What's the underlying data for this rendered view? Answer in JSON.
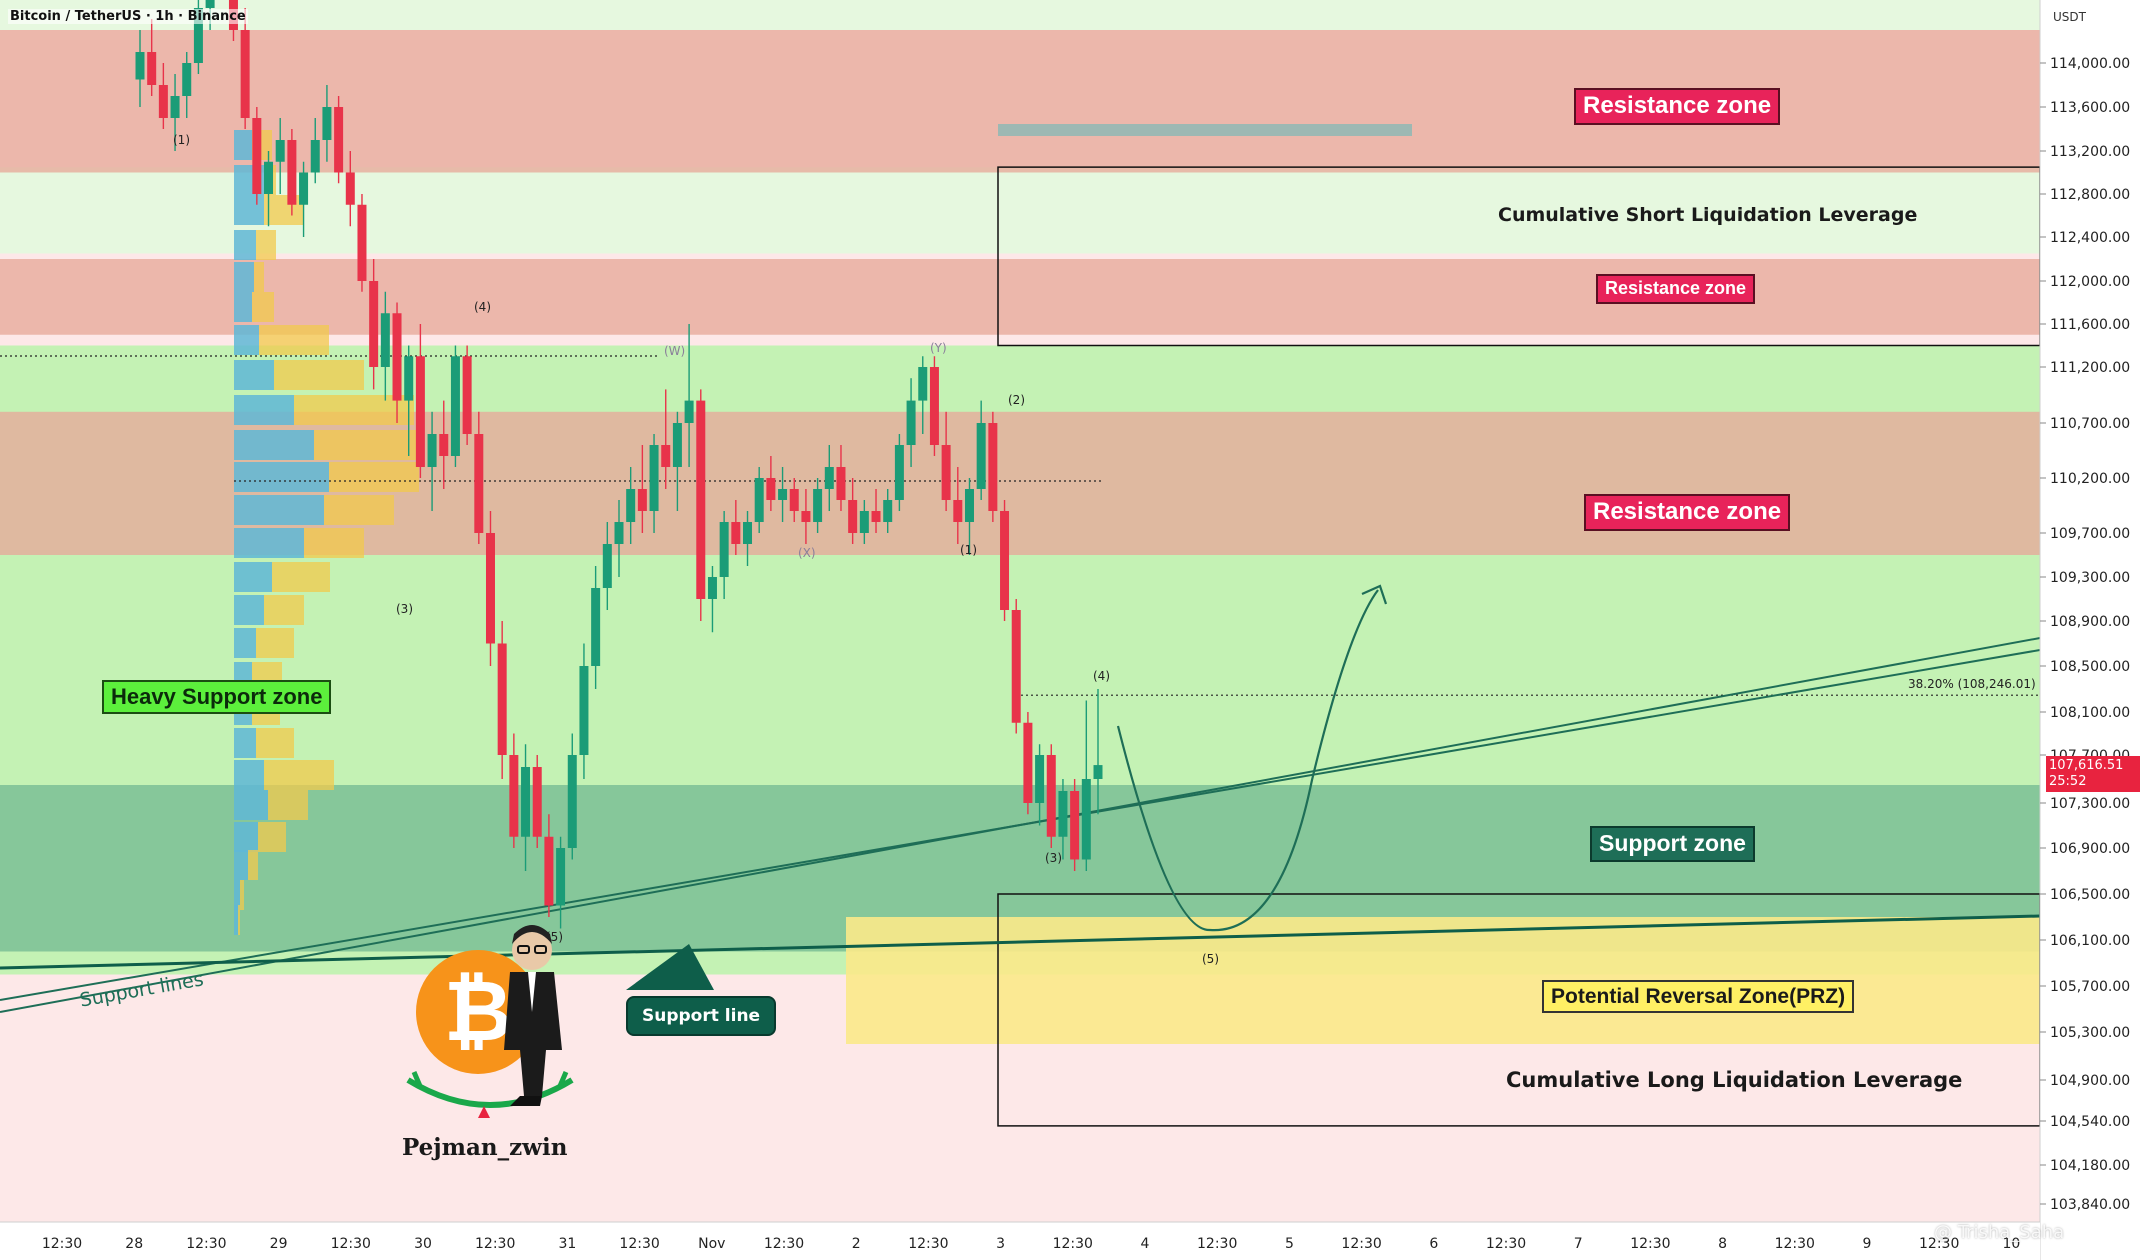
{
  "header": {
    "symbol": "Bitcoin / TetherUS · 1h · Binance",
    "axis_currency": "USDT"
  },
  "chart_data": {
    "type": "candlestick",
    "ylim": [
      103600,
      115000
    ],
    "y_ticks": [
      "114,000.00",
      "113,600.00",
      "113,200.00",
      "112,800.00",
      "112,400.00",
      "112,000.00",
      "111,600.00",
      "111,200.00",
      "110,700.00",
      "110,200.00",
      "109,700.00",
      "109,300.00",
      "108,900.00",
      "108,500.00",
      "108,100.00",
      "107,700.00",
      "107,300.00",
      "106,900.00",
      "106,500.00",
      "106,100.00",
      "105,700.00",
      "105,300.00",
      "104,900.00",
      "104,540.00",
      "104,180.00",
      "103,840.00"
    ],
    "x_ticks": [
      "12:30",
      "28",
      "12:30",
      "29",
      "12:30",
      "30",
      "12:30",
      "31",
      "12:30",
      "Nov",
      "12:30",
      "2",
      "12:30",
      "3",
      "12:30",
      "4",
      "12:30",
      "5",
      "12:30",
      "6",
      "12:30",
      "7",
      "12:30",
      "8",
      "12:30",
      "9",
      "12:30",
      "10"
    ],
    "current_price": {
      "value": 107616.51,
      "label": "107,616.51",
      "countdown": "25:52"
    },
    "fib": {
      "label": "38.20% (108,246.01)",
      "value": 108246.01
    },
    "zones": [
      {
        "name": "Resistance zone",
        "kind": "resistance",
        "low": 113000,
        "high": 114300
      },
      {
        "name": "Resistance zone",
        "kind": "resistance",
        "low": 111500,
        "high": 112200
      },
      {
        "name": "Resistance zone",
        "kind": "resistance",
        "low": 109500,
        "high": 110800
      },
      {
        "name": "Support zone",
        "kind": "support",
        "low": 106000,
        "high": 107450
      },
      {
        "name": "Heavy Support zone",
        "kind": "heavy",
        "low": 105800,
        "high": 111400
      },
      {
        "name": "Potential Reversal Zone(PRZ)",
        "kind": "prz",
        "low": 105200,
        "high": 106300
      }
    ],
    "liquidation_boxes": [
      {
        "name": "Cumulative Short Liquidation Leverage",
        "low": 111400,
        "high": 113050
      },
      {
        "name": "Cumulative Long Liquidation Leverage",
        "low": 104500,
        "high": 106500
      }
    ],
    "wave_labels": [
      "(1)",
      "(4)",
      "(3)",
      "(W)",
      "(X)",
      "(Y)",
      "(2)",
      "(1)",
      "(4)",
      "(3)",
      "(5)",
      "(5)"
    ],
    "annotations": [
      "Support lines",
      "Support line"
    ],
    "candles": [
      [
        113850,
        114300,
        113600,
        114100
      ],
      [
        114100,
        114400,
        113700,
        113800
      ],
      [
        113800,
        114000,
        113400,
        113500
      ],
      [
        113500,
        113900,
        113200,
        113700
      ],
      [
        113700,
        114100,
        113500,
        114000
      ],
      [
        114000,
        114600,
        113900,
        114500
      ],
      [
        114500,
        114900,
        114300,
        114800
      ],
      [
        114800,
        115100,
        114600,
        114900
      ],
      [
        114900,
        115000,
        114200,
        114300
      ],
      [
        114300,
        114500,
        113400,
        113500
      ],
      [
        113500,
        113600,
        112700,
        112800
      ],
      [
        112800,
        113200,
        112500,
        113100
      ],
      [
        113100,
        113500,
        112800,
        113300
      ],
      [
        113300,
        113400,
        112600,
        112700
      ],
      [
        112700,
        113100,
        112400,
        113000
      ],
      [
        113000,
        113500,
        112900,
        113300
      ],
      [
        113300,
        113800,
        113100,
        113600
      ],
      [
        113600,
        113700,
        112900,
        113000
      ],
      [
        113000,
        113200,
        112500,
        112700
      ],
      [
        112700,
        112800,
        111900,
        112000
      ],
      [
        112000,
        112200,
        111000,
        111200
      ],
      [
        111200,
        111900,
        110900,
        111700
      ],
      [
        111700,
        111800,
        110700,
        110900
      ],
      [
        110900,
        111400,
        110400,
        111300
      ],
      [
        111300,
        111600,
        110200,
        110300
      ],
      [
        110300,
        110800,
        109900,
        110600
      ],
      [
        110600,
        110900,
        110100,
        110400
      ],
      [
        110400,
        111400,
        110300,
        111300
      ],
      [
        111300,
        111400,
        110500,
        110600
      ],
      [
        110600,
        110800,
        109600,
        109700
      ],
      [
        109700,
        109900,
        108500,
        108700
      ],
      [
        108700,
        108900,
        107500,
        107700
      ],
      [
        107700,
        107900,
        106900,
        107000
      ],
      [
        107000,
        107800,
        106700,
        107600
      ],
      [
        107600,
        107700,
        106900,
        107000
      ],
      [
        107000,
        107200,
        106300,
        106400
      ],
      [
        106400,
        107000,
        106200,
        106900
      ],
      [
        106900,
        107900,
        106800,
        107700
      ],
      [
        107700,
        108700,
        107500,
        108500
      ],
      [
        108500,
        109400,
        108300,
        109200
      ],
      [
        109200,
        109800,
        109000,
        109600
      ],
      [
        109600,
        110000,
        109300,
        109800
      ],
      [
        109800,
        110300,
        109600,
        110100
      ],
      [
        110100,
        110500,
        109700,
        109900
      ],
      [
        109900,
        110600,
        109700,
        110500
      ],
      [
        110500,
        111000,
        110100,
        110300
      ],
      [
        110300,
        110800,
        109900,
        110700
      ],
      [
        110700,
        111600,
        110300,
        110900
      ],
      [
        110900,
        111000,
        108900,
        109100
      ],
      [
        109100,
        109400,
        108800,
        109300
      ],
      [
        109300,
        109900,
        109100,
        109800
      ],
      [
        109800,
        110000,
        109500,
        109600
      ],
      [
        109600,
        109900,
        109400,
        109800
      ],
      [
        109800,
        110300,
        109700,
        110200
      ],
      [
        110200,
        110400,
        109900,
        110000
      ],
      [
        110000,
        110300,
        109800,
        110100
      ],
      [
        110100,
        110200,
        109800,
        109900
      ],
      [
        109900,
        110100,
        109600,
        109800
      ],
      [
        109800,
        110200,
        109700,
        110100
      ],
      [
        110100,
        110500,
        109900,
        110300
      ],
      [
        110300,
        110500,
        109900,
        110000
      ],
      [
        110000,
        110200,
        109600,
        109700
      ],
      [
        109700,
        110000,
        109600,
        109900
      ],
      [
        109900,
        110100,
        109700,
        109800
      ],
      [
        109800,
        110100,
        109700,
        110000
      ],
      [
        110000,
        110600,
        109900,
        110500
      ],
      [
        110500,
        111100,
        110300,
        110900
      ],
      [
        110900,
        111300,
        110600,
        111200
      ],
      [
        111200,
        111300,
        110400,
        110500
      ],
      [
        110500,
        110800,
        109900,
        110000
      ],
      [
        110000,
        110300,
        109600,
        109800
      ],
      [
        109800,
        110200,
        109500,
        110100
      ],
      [
        110100,
        110900,
        110000,
        110700
      ],
      [
        110700,
        110800,
        109800,
        109900
      ],
      [
        109900,
        110000,
        108900,
        109000
      ],
      [
        109000,
        109100,
        107900,
        108000
      ],
      [
        108000,
        108100,
        107200,
        107300
      ],
      [
        107300,
        107800,
        107100,
        107700
      ],
      [
        107700,
        107800,
        106900,
        107000
      ],
      [
        107000,
        107500,
        106800,
        107400
      ],
      [
        107400,
        107500,
        106700,
        106800
      ],
      [
        106800,
        108200,
        106700,
        107500
      ],
      [
        107500,
        108300,
        107200,
        107616
      ]
    ]
  },
  "branding": {
    "author": "Pejman_zwin",
    "watermark": "@ Trisha_Saha"
  }
}
